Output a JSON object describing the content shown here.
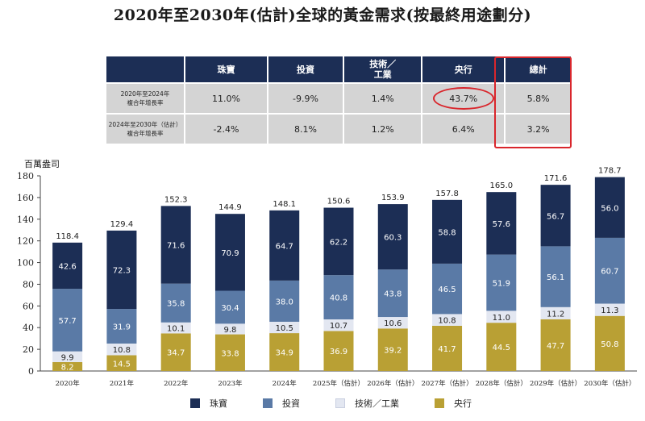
{
  "title": "2020年至2030年(估計)全球的黃金需求(按最終用途劃分)",
  "table": {
    "headers": [
      "",
      "珠寶",
      "投資",
      "技術／\n工業",
      "央行",
      "總計"
    ],
    "rows": [
      {
        "label": "2020年至2024年\n複合年增長率",
        "values": [
          "11.0%",
          "-9.9%",
          "1.4%",
          "43.7%",
          "5.8%"
        ]
      },
      {
        "label": "2024年至2030年（估計）\n複合年增長率",
        "values": [
          "-2.4%",
          "8.1%",
          "1.2%",
          "6.4%",
          "3.2%"
        ]
      }
    ],
    "highlight_color": "#d9262c"
  },
  "chart_data": {
    "type": "bar",
    "stacked": true,
    "ylabel": "百萬盎司",
    "ylim": [
      0,
      180
    ],
    "yticks": [
      0,
      20,
      40,
      60,
      80,
      100,
      120,
      140,
      160,
      180
    ],
    "categories": [
      "2020年",
      "2021年",
      "2022年",
      "2023年",
      "2024年",
      "2025年（估計）",
      "2026年（估計）",
      "2027年（估計）",
      "2028年（估計）",
      "2029年（估計）",
      "2030年（估計）"
    ],
    "series": [
      {
        "name": "央行",
        "color": "#b9a034",
        "values": [
          8.2,
          14.5,
          34.7,
          33.8,
          34.9,
          36.9,
          39.2,
          41.7,
          44.5,
          47.7,
          50.8
        ]
      },
      {
        "name": "技術／工業",
        "color": "#e3e7f1",
        "values": [
          9.9,
          10.8,
          10.1,
          9.8,
          10.5,
          10.7,
          10.6,
          10.8,
          11.0,
          11.2,
          11.3
        ]
      },
      {
        "name": "投資",
        "color": "#5a7aa6",
        "values": [
          57.7,
          31.9,
          35.8,
          30.4,
          38.0,
          40.8,
          43.8,
          46.5,
          51.9,
          56.1,
          60.7
        ]
      },
      {
        "name": "珠寶",
        "color": "#1c2e55",
        "values": [
          42.6,
          72.3,
          71.6,
          70.9,
          64.7,
          62.2,
          60.3,
          58.8,
          57.6,
          56.7,
          56.0
        ]
      }
    ],
    "totals": [
      "118.4",
      "129.4",
      "152.3",
      "144.9",
      "148.1",
      "150.6",
      "153.9",
      "157.8",
      "165.0",
      "171.6",
      "178.7"
    ],
    "labels": [
      [
        "8.2",
        "14.5",
        "34.7",
        "33.8",
        "34.9",
        "36.9",
        "39.2",
        "41.7",
        "44.5",
        "47.7",
        "50.8"
      ],
      [
        "9.9",
        "10.8",
        "10.1",
        "9.8",
        "10.5",
        "10.7",
        "10.6",
        "10.8",
        "11.0",
        "11.2",
        "11.3"
      ],
      [
        "57.7",
        "31.9",
        "35.8",
        "30.4",
        "38.0",
        "40.8",
        "43.8",
        "46.5",
        "51.9",
        "56.1",
        "60.7"
      ],
      [
        "42.6",
        "72.3",
        "71.6",
        "70.9",
        "64.7",
        "62.2",
        "60.3",
        "58.8",
        "57.6",
        "56.7",
        "56.0"
      ]
    ],
    "legend": [
      {
        "name": "珠寶",
        "color": "#1c2e55"
      },
      {
        "name": "投資",
        "color": "#5a7aa6"
      },
      {
        "name": "技術／工業",
        "color": "#e3e7f1"
      },
      {
        "name": "央行",
        "color": "#b9a034"
      }
    ]
  }
}
